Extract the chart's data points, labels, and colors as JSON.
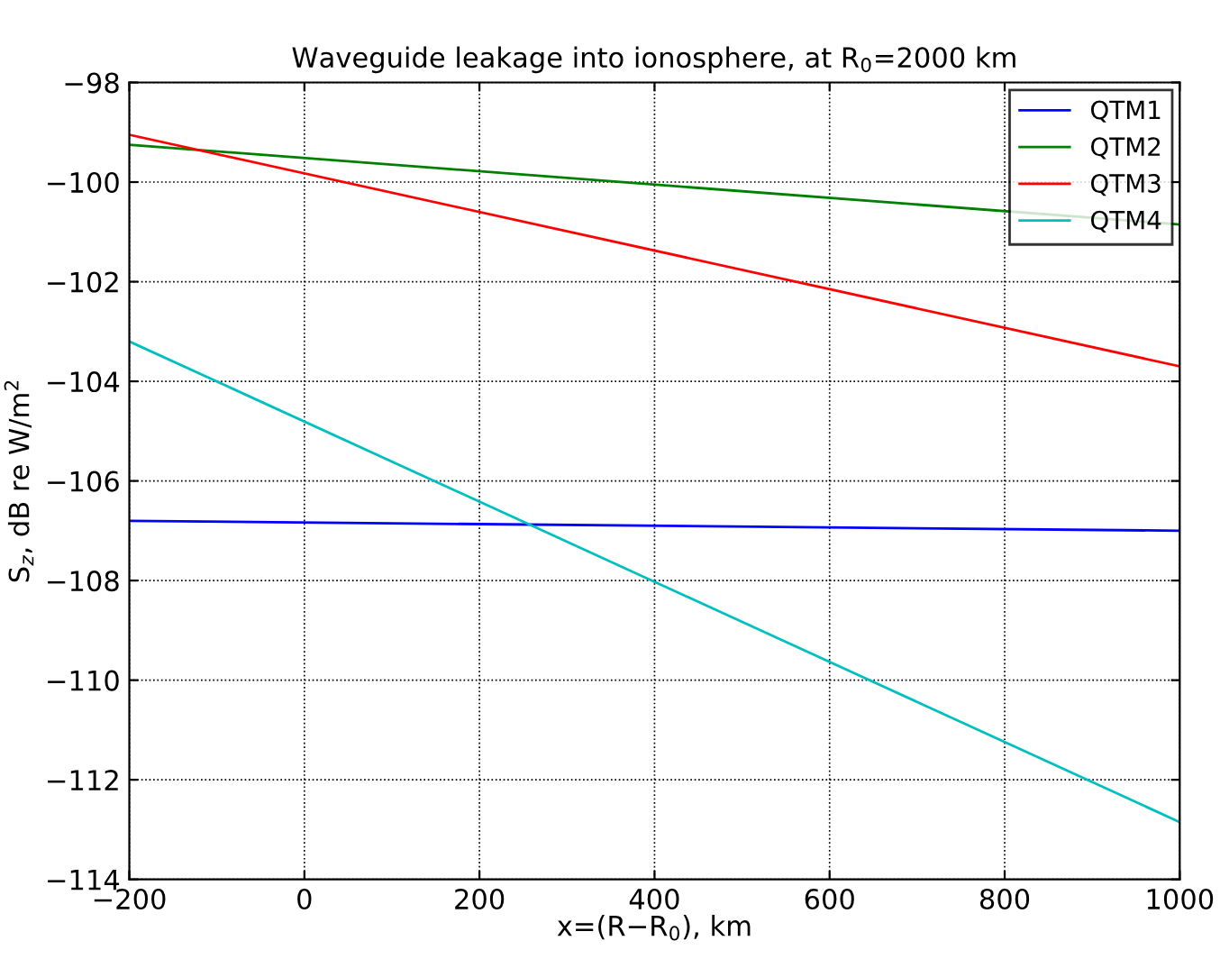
{
  "chart_data": {
    "type": "line",
    "title": "Waveguide leakage into ionosphere, at R$_{0}$=2000 km",
    "xlabel": "x=(R−R$_{0}$), km",
    "ylabel": "S$_{z}$, dB re W/m$^{2}$",
    "x": [
      -200,
      1000
    ],
    "series": [
      {
        "name": "QTM1",
        "color": "#0000ff",
        "values": [
          -106.8,
          -107.0
        ]
      },
      {
        "name": "QTM2",
        "color": "#008000",
        "values": [
          -99.25,
          -100.85
        ]
      },
      {
        "name": "QTM3",
        "color": "#ff0000",
        "values": [
          -99.05,
          -103.7
        ]
      },
      {
        "name": "QTM4",
        "color": "#00bfbf",
        "values": [
          -103.2,
          -112.85
        ]
      }
    ],
    "xlim": [
      -200,
      1000
    ],
    "xticks": [
      -200,
      0,
      200,
      400,
      600,
      800,
      1000
    ],
    "ylim": [
      -114,
      -98
    ],
    "yticks": [
      -114,
      -112,
      -110,
      -108,
      -106,
      -104,
      -102,
      -100,
      -98
    ],
    "grid": true,
    "legend": "top right",
    "marker": "none",
    "line_style": "solid"
  }
}
